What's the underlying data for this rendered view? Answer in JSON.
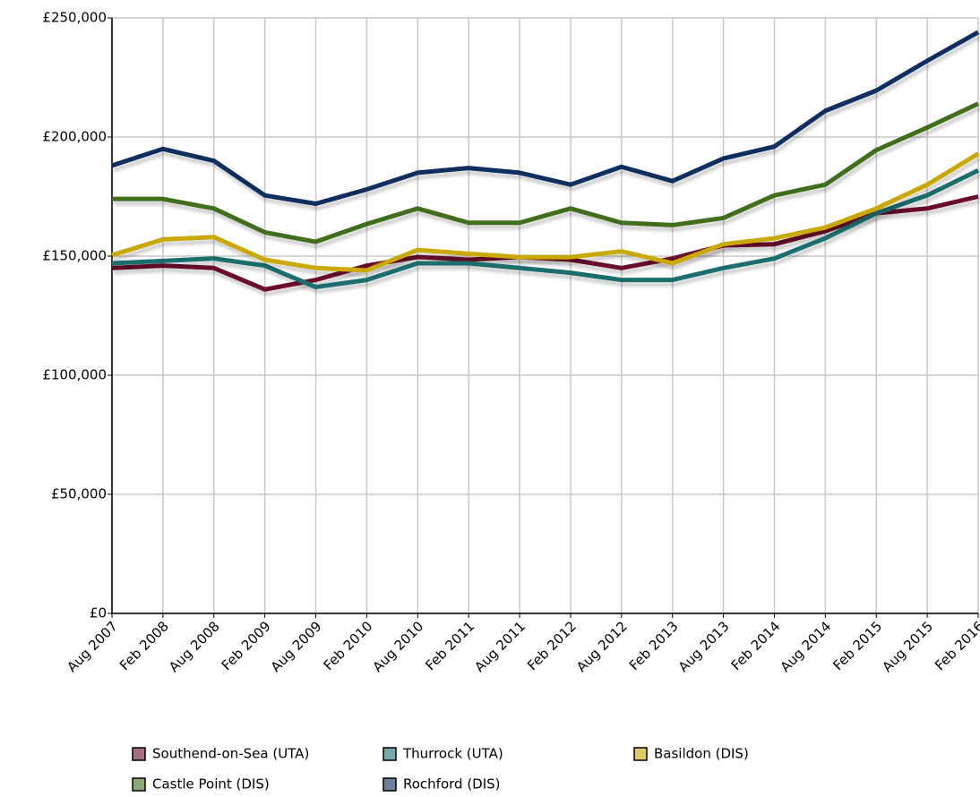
{
  "chart_data": {
    "type": "line",
    "categories": [
      "Aug 2007",
      "Feb 2008",
      "Aug 2008",
      "Feb 2009",
      "Aug 2009",
      "Feb 2010",
      "Aug 2010",
      "Feb 2011",
      "Aug 2011",
      "Feb 2012",
      "Aug 2012",
      "Feb 2013",
      "Aug 2013",
      "Feb 2014",
      "Aug 2014",
      "Feb 2015",
      "Aug 2015",
      "Feb 2016"
    ],
    "series": [
      {
        "name": "Southend-on-Sea (UTA)",
        "color": "#6b0f2b",
        "values": [
          145000,
          146000,
          145000,
          136000,
          140000,
          146000,
          149600,
          148500,
          149600,
          148500,
          145000,
          149000,
          154500,
          155000,
          160500,
          168000,
          170000,
          175000
        ]
      },
      {
        "name": "Thurrock (UTA)",
        "color": "#1f6e6e",
        "values": [
          147000,
          148000,
          149000,
          146000,
          137000,
          140000,
          147000,
          147000,
          145000,
          143000,
          140000,
          140000,
          145000,
          149000,
          157500,
          168000,
          175500,
          186000
        ]
      },
      {
        "name": "Basildon (DIS)",
        "color": "#c9a800",
        "values": [
          150400,
          157000,
          158000,
          148500,
          145000,
          144000,
          152600,
          151000,
          149600,
          149600,
          152000,
          147000,
          155000,
          157500,
          162000,
          170000,
          180000,
          193000
        ]
      },
      {
        "name": "Castle Point (DIS)",
        "color": "#3f6e1a",
        "values": [
          174000,
          174000,
          170000,
          160000,
          156000,
          163500,
          170000,
          164000,
          164000,
          170000,
          164000,
          163000,
          166000,
          175500,
          180000,
          194500,
          204000,
          214000
        ]
      },
      {
        "name": "Rochford (DIS)",
        "color": "#0b2d5e",
        "values": [
          188000,
          195000,
          190000,
          175500,
          172000,
          178000,
          185000,
          187000,
          185000,
          180000,
          187500,
          181500,
          191000,
          196000,
          211000,
          219500,
          232000,
          244000
        ]
      }
    ],
    "ylim": [
      0,
      250000
    ],
    "yticks": [
      {
        "value": 0,
        "label": "£0"
      },
      {
        "value": 50000,
        "label": "£50,000"
      },
      {
        "value": 100000,
        "label": "£100,000"
      },
      {
        "value": 150000,
        "label": "£150,000"
      },
      {
        "value": 200000,
        "label": "£200,000"
      },
      {
        "value": 250000,
        "label": "£250,000"
      }
    ],
    "grid": true
  }
}
